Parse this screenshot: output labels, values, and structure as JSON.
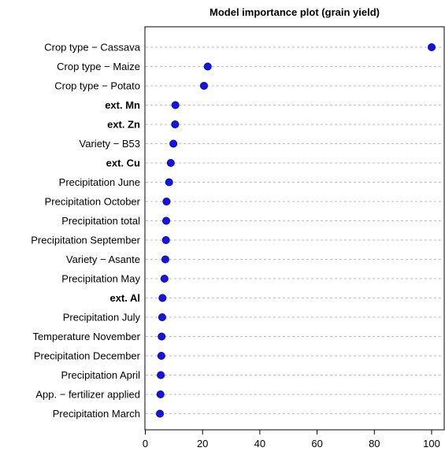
{
  "chart_data": {
    "type": "scatter",
    "title": "Model importance plot (grain yield)",
    "xlabel": "",
    "ylabel": "",
    "xlim": [
      0,
      105
    ],
    "xticks": [
      0,
      20,
      40,
      60,
      80,
      100
    ],
    "grid": "horizontal dashed",
    "point_color": "#1414e6",
    "categories": [
      {
        "label": "Crop type − Cassava",
        "value": 100,
        "bold": false
      },
      {
        "label": "Crop type − Maize",
        "value": 21.8,
        "bold": false
      },
      {
        "label": "Crop type − Potato",
        "value": 20.5,
        "bold": false
      },
      {
        "label": "ext. Mn",
        "value": 10.5,
        "bold": true
      },
      {
        "label": "ext. Zn",
        "value": 10.4,
        "bold": true
      },
      {
        "label": "Variety − B53",
        "value": 9.8,
        "bold": false
      },
      {
        "label": "ext. Cu",
        "value": 8.9,
        "bold": true
      },
      {
        "label": "Precipitation June",
        "value": 8.3,
        "bold": false
      },
      {
        "label": "Precipitation October",
        "value": 7.4,
        "bold": false
      },
      {
        "label": "Precipitation total",
        "value": 7.3,
        "bold": false
      },
      {
        "label": "Precipitation September",
        "value": 7.2,
        "bold": false
      },
      {
        "label": "Variety − Asante",
        "value": 7.0,
        "bold": false
      },
      {
        "label": "Precipitation May",
        "value": 6.7,
        "bold": false
      },
      {
        "label": "ext. Al",
        "value": 6.0,
        "bold": true
      },
      {
        "label": "Precipitation July",
        "value": 5.9,
        "bold": false
      },
      {
        "label": "Temperature November",
        "value": 5.7,
        "bold": false
      },
      {
        "label": "Precipitation December",
        "value": 5.6,
        "bold": false
      },
      {
        "label": "Precipitation April",
        "value": 5.4,
        "bold": false
      },
      {
        "label": "App. − fertilizer applied",
        "value": 5.3,
        "bold": false
      },
      {
        "label": "Precipitation March",
        "value": 5.1,
        "bold": false
      }
    ]
  }
}
